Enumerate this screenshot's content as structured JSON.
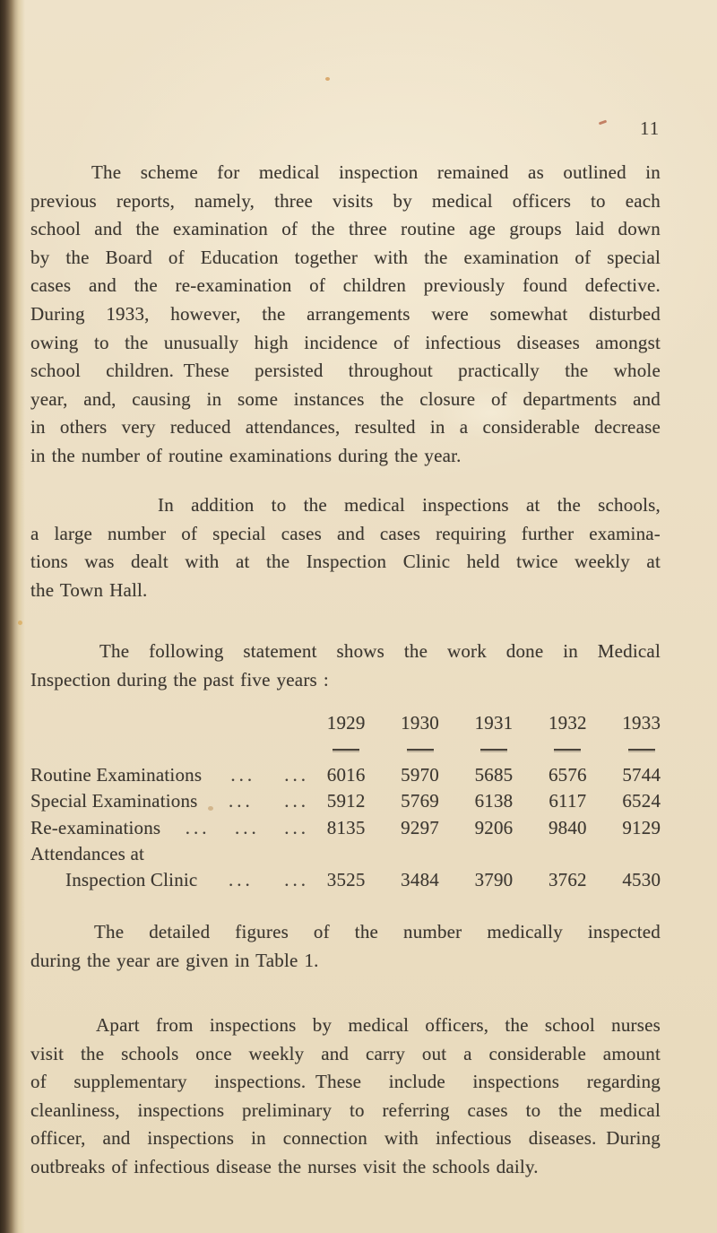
{
  "page": {
    "number": "11"
  },
  "colors": {
    "paper": "#ecdfc5",
    "ink": "#3d3831",
    "gutter_shadow": "#4a3b2a"
  },
  "paragraphs": [
    {
      "lines": [
        "The scheme for medical inspection remained as outlined in",
        "previous reports, namely, three visits by medical officers to each",
        "school and the examination of the three routine age groups laid down",
        "by the Board of Education together with the examination of special",
        "cases and the re-examination of children previously found defective.",
        "During 1933, however, the arrangements were somewhat disturbed",
        "owing to the unusually high incidence of infectious diseases amongst",
        "school children. These persisted throughout practically the whole",
        "year, and, causing in some instances the closure of departments and",
        "in others very reduced attendances, resulted in a considerable decrease",
        "in the number of routine examinations during the year."
      ]
    },
    {
      "lines": [
        "In addition to the medical inspections at the schools,",
        "a large number of special cases and cases requiring further examina-",
        "tions was dealt with at the Inspection Clinic held twice weekly at",
        "the Town Hall."
      ]
    },
    {
      "lines": [
        "The following statement shows the work done in Medical",
        "Inspection during the past five years :"
      ]
    },
    {
      "lines": [
        "The detailed figures of the number medically inspected",
        "during the year are given in Table 1."
      ]
    },
    {
      "lines": [
        "Apart from inspections by medical officers, the school nurses",
        "visit the schools once weekly and carry out a considerable amount",
        "of supplementary inspections. These include inspections regarding",
        "cleanliness, inspections preliminary to referring cases to the medical",
        "officer, and inspections in connection with infectious diseases. During",
        "outbreaks of infectious disease the nurses visit the schools daily."
      ]
    }
  ],
  "table": {
    "years": [
      "1929",
      "1930",
      "1931",
      "1932",
      "1933"
    ],
    "rows": [
      {
        "label": "Routine Examinations",
        "indent": false,
        "leaders": [
          "...",
          "..."
        ],
        "values": [
          "6016",
          "5970",
          "5685",
          "6576",
          "5744"
        ]
      },
      {
        "label": "Special Examinations",
        "indent": false,
        "leaders": [
          "...",
          "..."
        ],
        "values": [
          "5912",
          "5769",
          "6138",
          "6117",
          "6524"
        ]
      },
      {
        "label": "Re-examinations",
        "indent": false,
        "leaders": [
          "...",
          "...",
          "..."
        ],
        "values": [
          "8135",
          "9297",
          "9206",
          "9840",
          "9129"
        ]
      },
      {
        "label": "Attendances at",
        "indent": false,
        "leaders": [],
        "values": []
      },
      {
        "label": "Inspection Clinic",
        "indent": true,
        "leaders": [
          "...",
          "..."
        ],
        "values": [
          "3525",
          "3484",
          "3790",
          "3762",
          "4530"
        ]
      }
    ]
  }
}
